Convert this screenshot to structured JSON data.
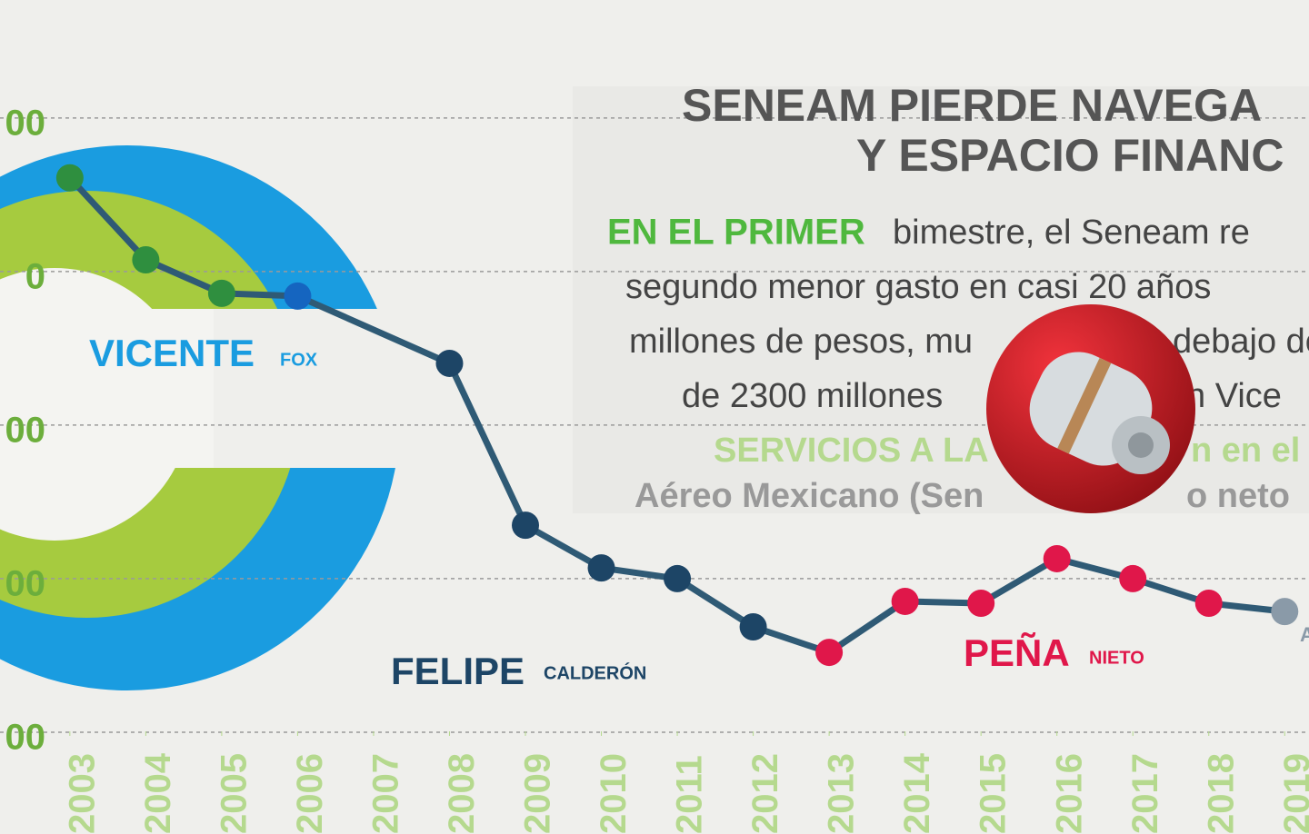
{
  "chart_data": {
    "type": "line",
    "title": "SENEAM PIERDE NAVEGA",
    "subtitle": "Y ESPACIO FINANC",
    "body_lead": "EN EL PRIMER",
    "body": [
      "bimestre, el Seneam re",
      "segundo menor gasto en casi 20 años",
      "millones de pesos, mu",
      "debajo de",
      "de 2300 millones",
      "n Vice",
      "SERVICIOS A LA",
      "n en el",
      "Aéreo Mexicano (Sen",
      "o neto"
    ],
    "presidents": [
      {
        "first": "VICENTE",
        "last": "FOX",
        "color": "#1a9ce0"
      },
      {
        "first": "FELIPE",
        "last": "CALDERÓN",
        "color": "#1d4566"
      },
      {
        "first": "PEÑA",
        "last": "NIETO",
        "color": "#e0174a"
      }
    ],
    "edge_label": "A",
    "x": [
      2003,
      2004,
      2005,
      2006,
      2008,
      2009,
      2010,
      2011,
      2012,
      2013,
      2014,
      2015,
      2016,
      2017,
      2018,
      2019
    ],
    "series": [
      {
        "color": "#2f5a75",
        "values": [
          2305,
          2038,
          1929,
          1920,
          1701,
          1174,
          1035,
          1000,
          843,
          760,
          926,
          920,
          1065,
          1000,
          920,
          893
        ],
        "point_colors": [
          "#2f8f3f",
          "#2f8f3f",
          "#2f8f3f",
          "#1565c0",
          "#1d4566",
          "#1d4566",
          "#1d4566",
          "#1d4566",
          "#1d4566",
          "#e0174a",
          "#e0174a",
          "#e0174a",
          "#e0174a",
          "#e0174a",
          "#e0174a",
          "#8a9aa8"
        ]
      }
    ],
    "xlim": [
      2002.08,
      2019.32
    ],
    "xticks": [
      2003,
      2004,
      2005,
      2006,
      2007,
      2008,
      2009,
      2010,
      2011,
      2012,
      2013,
      2014,
      2015,
      2016,
      2017,
      2018,
      2019
    ],
    "ylim": [
      0,
      2884
    ],
    "yticks": [
      {
        "value": 2500,
        "label": "00"
      },
      {
        "value": 2000,
        "label": "0"
      },
      {
        "value": 1500,
        "label": "00"
      },
      {
        "value": 1000,
        "label": "00"
      },
      {
        "value": 500,
        "label": "00"
      }
    ],
    "grid": true
  }
}
